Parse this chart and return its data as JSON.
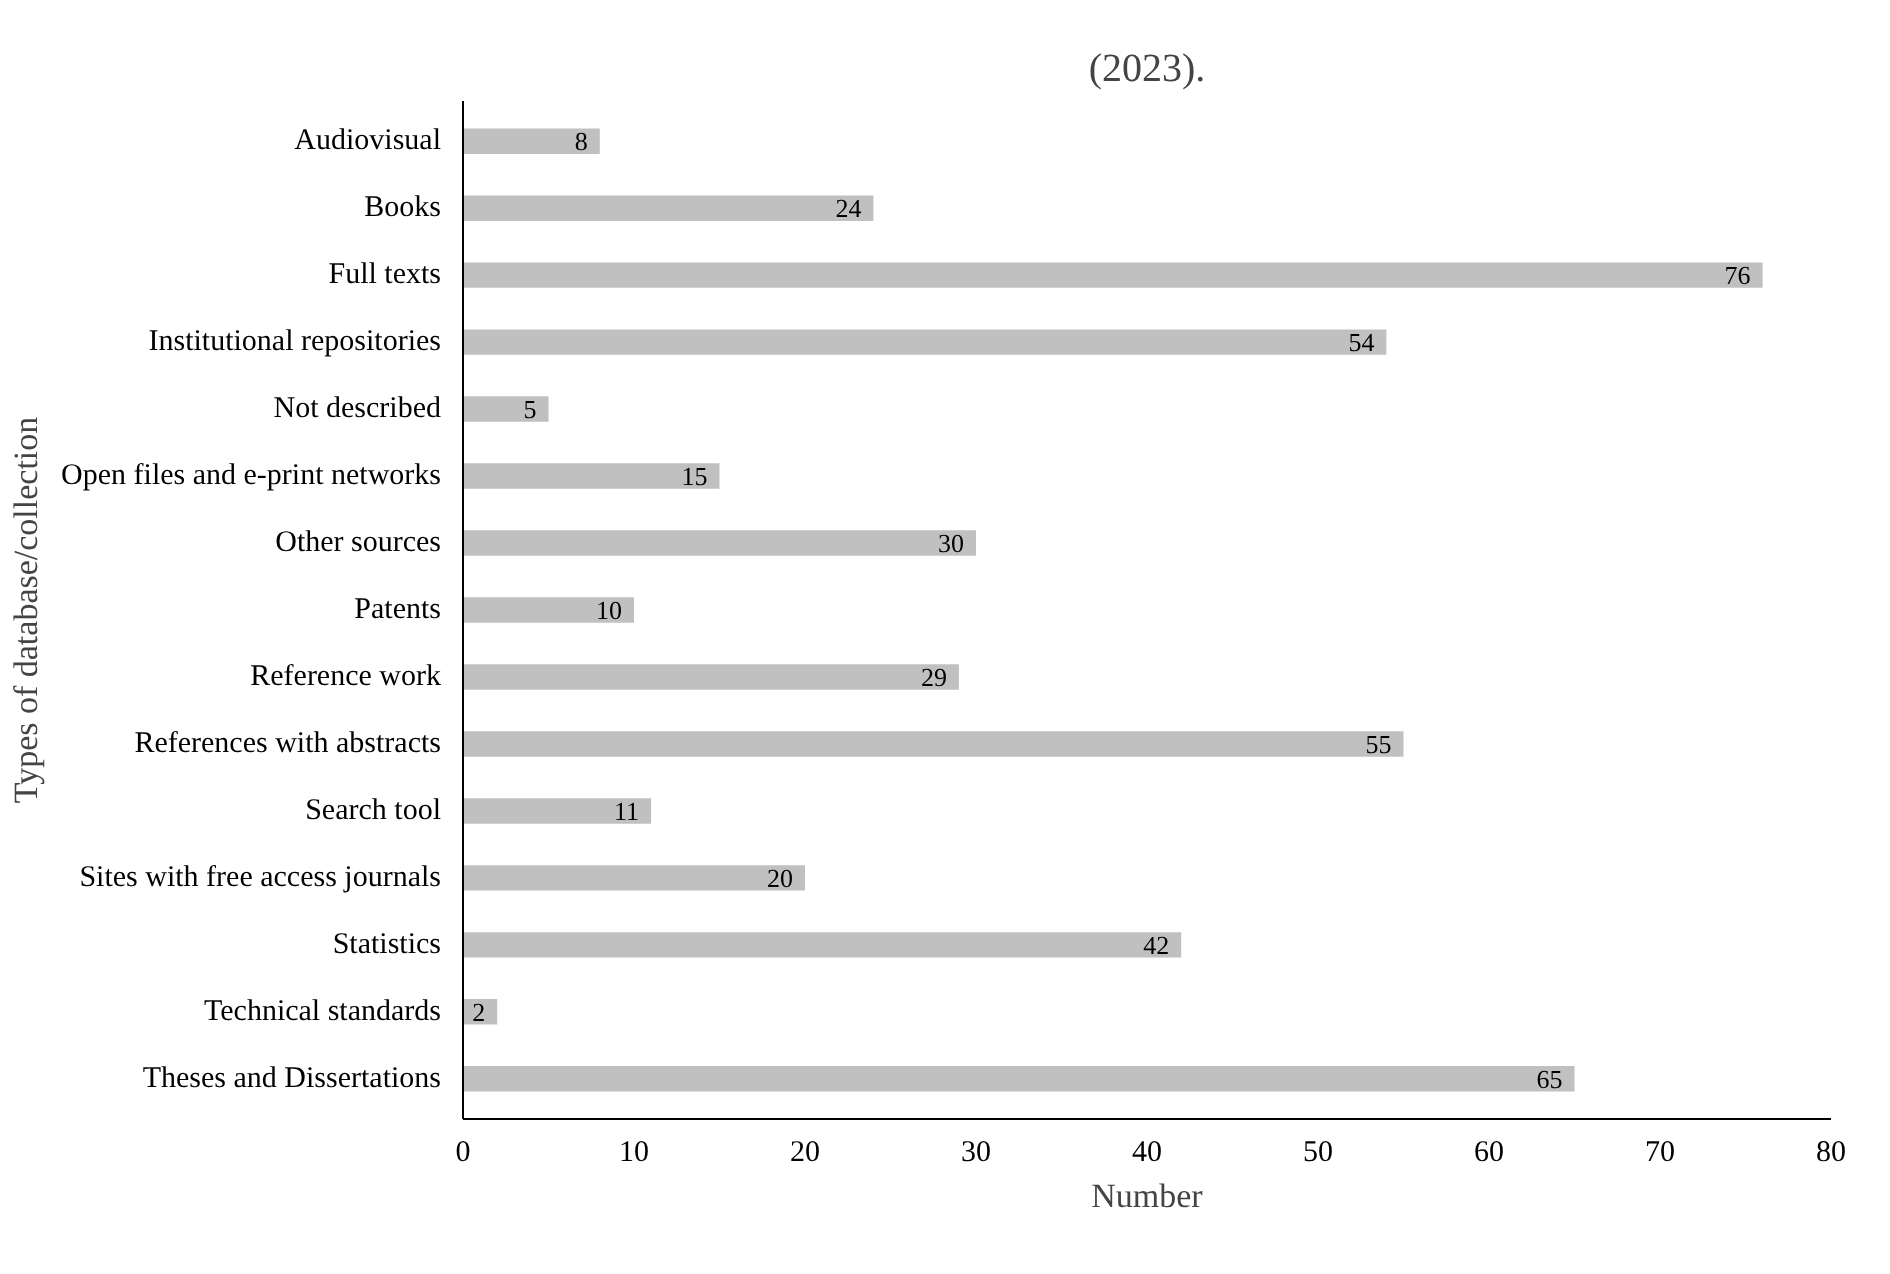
{
  "chart_data": {
    "type": "bar",
    "orientation": "horizontal",
    "xlabel": "Number",
    "ylabel": "Types of database/collection",
    "annotations": [
      "(2023)."
    ],
    "categories": [
      "Audiovisual",
      "Books",
      "Full texts",
      "Institutional repositories",
      "Not described",
      "Open files and e-print networks",
      "Other sources",
      "Patents",
      "Reference work",
      "References with abstracts",
      "Search tool",
      "Sites with free access journals",
      "Statistics",
      "Technical standards",
      "Theses and Dissertations"
    ],
    "values": [
      8,
      24,
      76,
      54,
      5,
      15,
      30,
      10,
      29,
      55,
      11,
      20,
      42,
      2,
      65
    ],
    "color": "#c0c0c0",
    "xlim": [
      0,
      80
    ],
    "xticks": [
      0,
      10,
      20,
      30,
      40,
      50,
      60,
      70,
      80
    ],
    "grid": false,
    "data_labels": true
  }
}
